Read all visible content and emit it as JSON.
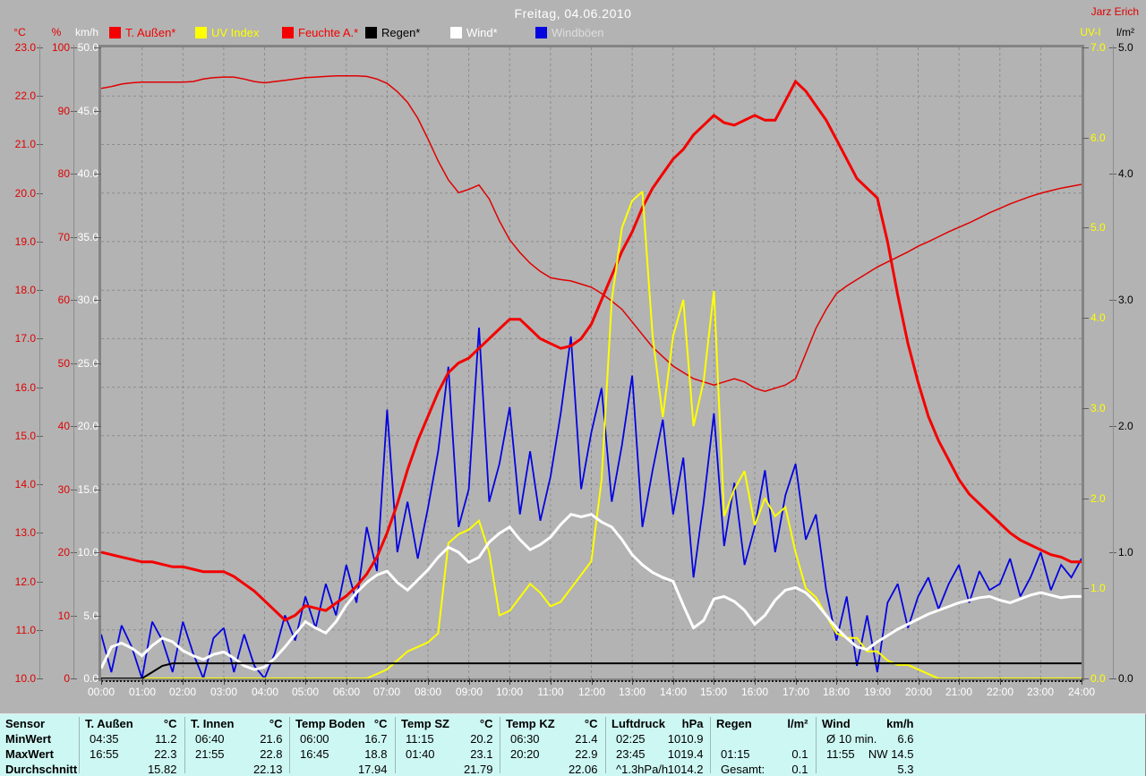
{
  "window": {
    "title": "Freitag, 04.06.2010",
    "user": "Jarz Erich"
  },
  "legend": {
    "items": [
      {
        "label": "T. Außen*",
        "swatch_color": "#f40000",
        "label_color": "#f40000"
      },
      {
        "label": "UV Index",
        "swatch_color": "#ffff00",
        "label_color": "#ffff00"
      },
      {
        "label": "Feuchte A.*",
        "swatch_color": "#f40000",
        "label_color": "#f40000"
      },
      {
        "label": "Regen*",
        "swatch_color": "#000000",
        "label_color": "#000000"
      },
      {
        "label": "Wind*",
        "swatch_color": "#ffffff",
        "label_color": "#ffffff"
      },
      {
        "label": "Windböen",
        "swatch_color": "#0404e0",
        "label_color": "#dedede"
      }
    ]
  },
  "axes": {
    "left": [
      {
        "header": "°C",
        "color": "#e00000",
        "ticks": [
          "23.0",
          "22.0",
          "21.0",
          "20.0",
          "19.0",
          "18.0",
          "17.0",
          "16.0",
          "15.0",
          "14.0",
          "13.0",
          "12.0",
          "11.0",
          "10.0"
        ]
      },
      {
        "header": "%",
        "color": "#e00000",
        "ticks": [
          "100",
          "90",
          "80",
          "70",
          "60",
          "50",
          "40",
          "30",
          "20",
          "10",
          "0"
        ]
      },
      {
        "header": "km/h",
        "color": "#ffffff",
        "ticks": [
          "50.0",
          "45.0",
          "40.0",
          "35.0",
          "30.0",
          "25.0",
          "20.0",
          "15.0",
          "10.0",
          "5.0",
          "0.0"
        ]
      }
    ],
    "right": [
      {
        "header": "UV-I",
        "color": "#ffff00",
        "ticks": [
          "7.0",
          "6.0",
          "5.0",
          "4.0",
          "3.0",
          "2.0",
          "1.0",
          "0.0"
        ]
      },
      {
        "header": "l/m²",
        "color": "#000000",
        "ticks": [
          "5.0",
          "4.0",
          "3.0",
          "2.0",
          "1.0",
          "0.0"
        ]
      }
    ],
    "x_ticks": [
      "00:00",
      "01:00",
      "02:00",
      "03:00",
      "04:00",
      "05:00",
      "06:00",
      "07:00",
      "08:00",
      "09:00",
      "10:00",
      "11:00",
      "12:00",
      "13:00",
      "14:00",
      "15:00",
      "16:00",
      "17:00",
      "18:00",
      "19:00",
      "20:00",
      "21:00",
      "22:00",
      "23:00",
      "24:00"
    ]
  },
  "chart_data": {
    "type": "line",
    "title": "Freitag, 04.06.2010",
    "x_unit": "hours",
    "x_range": [
      0,
      24
    ],
    "sample_interval_minutes": 15,
    "grid": "dashed, hourly vertical, 1°C horizontal",
    "legend_position": "top",
    "series": [
      {
        "name": "T. Außen",
        "color": "#f40000",
        "width": 3,
        "axis": "temp_°C",
        "axis_range": [
          10,
          23
        ],
        "values": [
          12.6,
          12.55,
          12.5,
          12.45,
          12.4,
          12.4,
          12.35,
          12.3,
          12.3,
          12.25,
          12.2,
          12.2,
          12.2,
          12.1,
          11.95,
          11.8,
          11.6,
          11.4,
          11.2,
          11.3,
          11.5,
          11.45,
          11.4,
          11.55,
          11.7,
          11.9,
          12.15,
          12.5,
          13.0,
          13.6,
          14.3,
          14.9,
          15.4,
          15.9,
          16.3,
          16.5,
          16.6,
          16.8,
          17.0,
          17.2,
          17.4,
          17.4,
          17.2,
          17.0,
          16.9,
          16.8,
          16.85,
          17.0,
          17.3,
          17.8,
          18.3,
          18.8,
          19.2,
          19.7,
          20.1,
          20.4,
          20.7,
          20.9,
          21.2,
          21.4,
          21.6,
          21.45,
          21.4,
          21.5,
          21.6,
          21.5,
          21.5,
          21.9,
          22.3,
          22.1,
          21.8,
          21.5,
          21.1,
          20.7,
          20.3,
          20.1,
          19.9,
          19.0,
          17.9,
          16.9,
          16.1,
          15.4,
          14.9,
          14.5,
          14.1,
          13.8,
          13.6,
          13.4,
          13.2,
          13.0,
          12.85,
          12.75,
          12.65,
          12.55,
          12.5,
          12.4,
          12.4
        ]
      },
      {
        "name": "Feuchte A.",
        "color": "#e00000",
        "width": 1.5,
        "axis": "percent",
        "axis_range": [
          0,
          100
        ],
        "values": [
          93.5,
          93.8,
          94.2,
          94.4,
          94.5,
          94.5,
          94.5,
          94.5,
          94.5,
          94.6,
          95.0,
          95.2,
          95.3,
          95.3,
          95.0,
          94.6,
          94.4,
          94.6,
          94.8,
          95.0,
          95.2,
          95.3,
          95.4,
          95.5,
          95.5,
          95.5,
          95.4,
          95.0,
          94.3,
          93.0,
          91.3,
          88.8,
          85.5,
          82.0,
          79.0,
          77.0,
          77.5,
          78.2,
          76.0,
          72.5,
          69.5,
          67.5,
          65.8,
          64.5,
          63.5,
          63.2,
          63.0,
          62.5,
          62.0,
          61.0,
          59.8,
          58.5,
          56.5,
          54.5,
          52.5,
          51.0,
          49.5,
          48.5,
          47.5,
          47.0,
          46.5,
          47.0,
          47.5,
          47.0,
          46.0,
          45.5,
          46.0,
          46.5,
          47.5,
          51.5,
          55.5,
          58.5,
          61.0,
          62.2,
          63.2,
          64.2,
          65.2,
          66.0,
          66.8,
          67.6,
          68.5,
          69.2,
          70.0,
          70.8,
          71.5,
          72.2,
          73.0,
          73.8,
          74.5,
          75.2,
          75.8,
          76.4,
          76.9,
          77.3,
          77.7,
          78.0,
          78.3
        ]
      },
      {
        "name": "Wind",
        "color": "#ffffff",
        "width": 3,
        "axis": "km/h",
        "axis_range": [
          0,
          50
        ],
        "values": [
          0.8,
          2.5,
          2.8,
          2.4,
          1.8,
          2.6,
          3.2,
          2.9,
          2.2,
          1.8,
          1.5,
          1.9,
          2.1,
          1.6,
          1.0,
          0.7,
          0.9,
          1.6,
          2.5,
          3.5,
          4.5,
          4.0,
          3.6,
          4.5,
          5.8,
          6.8,
          7.6,
          8.2,
          8.5,
          7.6,
          7.0,
          7.8,
          8.6,
          9.6,
          10.4,
          10.0,
          9.2,
          9.6,
          10.8,
          11.5,
          12.0,
          11.0,
          10.2,
          10.6,
          11.2,
          12.2,
          13.0,
          12.8,
          13.0,
          12.4,
          12.0,
          11.0,
          9.8,
          9.0,
          8.4,
          8.0,
          7.7,
          5.8,
          4.0,
          4.6,
          6.3,
          6.5,
          6.1,
          5.4,
          4.3,
          5.0,
          6.2,
          7.0,
          7.2,
          6.8,
          6.0,
          5.0,
          4.0,
          3.2,
          2.5,
          2.3,
          2.9,
          3.4,
          3.9,
          4.3,
          4.7,
          5.1,
          5.4,
          5.7,
          6.0,
          6.2,
          6.4,
          6.5,
          6.2,
          6.0,
          6.3,
          6.6,
          6.8,
          6.6,
          6.4,
          6.5,
          6.5
        ]
      },
      {
        "name": "Windböen",
        "color": "#0404e0",
        "width": 1.8,
        "axis": "km/h",
        "axis_range": [
          0,
          50
        ],
        "values": [
          3.5,
          0.5,
          4.2,
          2.5,
          0.0,
          4.5,
          3.0,
          0.5,
          4.5,
          2.0,
          0.0,
          3.2,
          4.0,
          0.5,
          3.5,
          1.0,
          0.0,
          2.0,
          5.0,
          3.0,
          6.5,
          4.0,
          7.5,
          5.0,
          9.0,
          6.0,
          12.0,
          8.5,
          21.3,
          10.0,
          14.0,
          9.5,
          13.5,
          18.0,
          24.7,
          12.0,
          15.0,
          27.8,
          14.0,
          17.0,
          21.5,
          13.0,
          18.0,
          12.5,
          16.0,
          21.0,
          27.1,
          15.0,
          19.5,
          23.0,
          14.0,
          18.5,
          24.0,
          12.0,
          16.5,
          20.5,
          13.0,
          17.5,
          8.0,
          14.0,
          21.0,
          10.5,
          15.5,
          9.0,
          12.0,
          16.5,
          10.0,
          14.5,
          17.0,
          11.0,
          13.0,
          7.0,
          3.0,
          6.5,
          1.0,
          5.0,
          0.5,
          6.0,
          7.5,
          4.0,
          6.5,
          8.0,
          5.5,
          7.5,
          9.0,
          6.0,
          8.5,
          7.0,
          7.5,
          9.5,
          6.5,
          8.0,
          10.0,
          7.0,
          9.0,
          8.0,
          9.5
        ]
      },
      {
        "name": "UV Index",
        "color": "#ffff00",
        "width": 2,
        "axis": "UV-I",
        "axis_range": [
          0,
          7
        ],
        "values": [
          0,
          0,
          0,
          0,
          0,
          0,
          0,
          0,
          0,
          0,
          0,
          0,
          0,
          0,
          0,
          0,
          0,
          0,
          0,
          0,
          0,
          0,
          0,
          0,
          0,
          0,
          0,
          0.05,
          0.1,
          0.2,
          0.3,
          0.35,
          0.4,
          0.5,
          1.5,
          1.6,
          1.65,
          1.75,
          1.4,
          0.7,
          0.75,
          0.9,
          1.05,
          0.95,
          0.8,
          0.85,
          1.0,
          1.15,
          1.3,
          2.2,
          4.2,
          5.0,
          5.3,
          5.4,
          3.8,
          2.9,
          3.8,
          4.2,
          2.8,
          3.3,
          4.3,
          1.8,
          2.1,
          2.3,
          1.7,
          2.0,
          1.8,
          1.9,
          1.4,
          1.0,
          0.9,
          0.7,
          0.5,
          0.45,
          0.45,
          0.3,
          0.3,
          0.2,
          0.15,
          0.15,
          0.1,
          0.05,
          0,
          0,
          0,
          0,
          0,
          0,
          0,
          0,
          0,
          0,
          0,
          0,
          0,
          0,
          0
        ]
      },
      {
        "name": "Regen",
        "color": "#000000",
        "width": 2,
        "axis": "l/m²",
        "axis_range": [
          0,
          5
        ],
        "values": [
          0,
          0,
          0,
          0,
          0,
          0.05,
          0.1,
          0.12,
          0.12,
          0.12,
          0.12,
          0.12,
          0.12,
          0.12,
          0.12,
          0.12,
          0.12,
          0.12,
          0.12,
          0.12,
          0.12,
          0.12,
          0.12,
          0.12,
          0.12,
          0.12,
          0.12,
          0.12,
          0.12,
          0.12,
          0.12,
          0.12,
          0.12,
          0.12,
          0.12,
          0.12,
          0.12,
          0.12,
          0.12,
          0.12,
          0.12,
          0.12,
          0.12,
          0.12,
          0.12,
          0.12,
          0.12,
          0.12,
          0.12,
          0.12,
          0.12,
          0.12,
          0.12,
          0.12,
          0.12,
          0.12,
          0.12,
          0.12,
          0.12,
          0.12,
          0.12,
          0.12,
          0.12,
          0.12,
          0.12,
          0.12,
          0.12,
          0.12,
          0.12,
          0.12,
          0.12,
          0.12,
          0.12,
          0.12,
          0.12,
          0.12,
          0.12,
          0.12,
          0.12,
          0.12,
          0.12,
          0.12,
          0.12,
          0.12,
          0.12,
          0.12,
          0.12,
          0.12,
          0.12,
          0.12,
          0.12,
          0.12,
          0.12,
          0.12,
          0.12,
          0.12,
          0.12
        ]
      }
    ]
  },
  "table": {
    "row_labels": [
      "Sensor",
      "MinWert",
      "MaxWert",
      "Durchschnitt"
    ],
    "columns": [
      {
        "name": "T. Außen",
        "unit": "°C",
        "rows": [
          [
            "04:35",
            "11.2"
          ],
          [
            "16:55",
            "22.3"
          ],
          [
            "",
            "15.82"
          ]
        ]
      },
      {
        "name": "T. Innen",
        "unit": "°C",
        "rows": [
          [
            "06:40",
            "21.6"
          ],
          [
            "21:55",
            "22.8"
          ],
          [
            "",
            "22.13"
          ]
        ]
      },
      {
        "name": "Temp Boden",
        "unit": "°C",
        "rows": [
          [
            "06:00",
            "16.7"
          ],
          [
            "16:45",
            "18.8"
          ],
          [
            "",
            "17.94"
          ]
        ]
      },
      {
        "name": "Temp SZ",
        "unit": "°C",
        "rows": [
          [
            "11:15",
            "20.2"
          ],
          [
            "01:40",
            "23.1"
          ],
          [
            "",
            "21.79"
          ]
        ]
      },
      {
        "name": "Temp KZ",
        "unit": "°C",
        "rows": [
          [
            "06:30",
            "21.4"
          ],
          [
            "20:20",
            "22.9"
          ],
          [
            "",
            "22.06"
          ]
        ]
      },
      {
        "name": "Luftdruck",
        "unit": "hPa",
        "rows": [
          [
            "02:25",
            "1010.9"
          ],
          [
            "23:45",
            "1019.4"
          ],
          [
            "^1.3hPa/h",
            "1014.2"
          ]
        ]
      },
      {
        "name": "Regen",
        "unit": "l/m²",
        "rows": [
          [
            "",
            ""
          ],
          [
            "01:15",
            "0.1"
          ],
          [
            "Gesamt:",
            "0.1"
          ]
        ]
      },
      {
        "name": "Wind",
        "unit": "km/h",
        "rows": [
          [
            "Ø 10 min.",
            "6.6"
          ],
          [
            "11:55",
            "NW 14.5"
          ],
          [
            "",
            "5.3"
          ]
        ]
      }
    ]
  }
}
